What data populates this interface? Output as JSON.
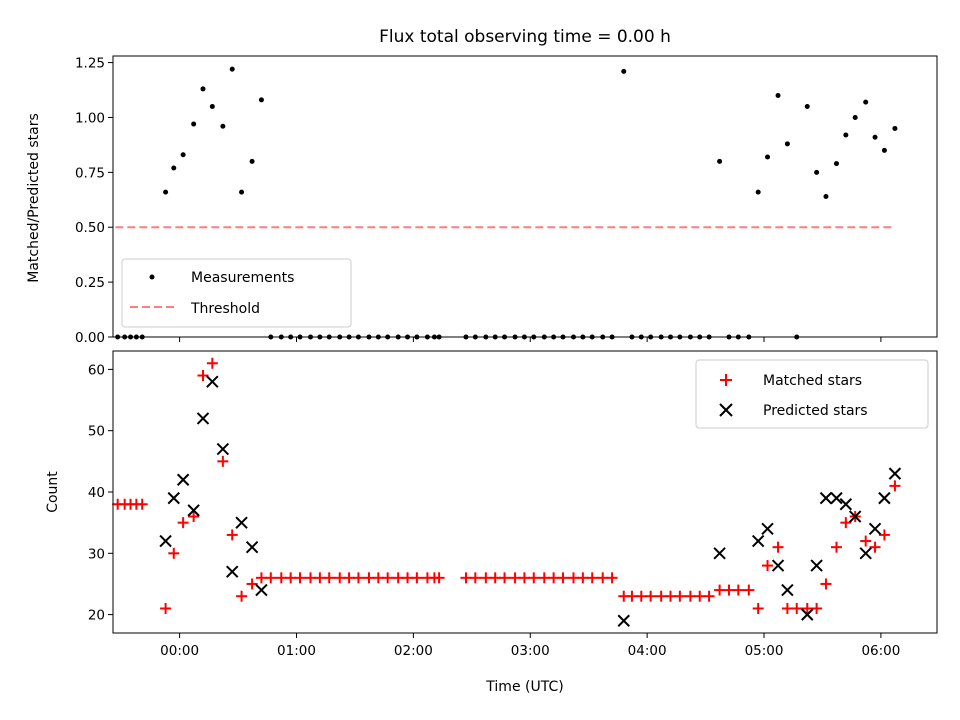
{
  "chart_data": [
    {
      "type": "scatter",
      "title": "Flux total observing time = 0.00 h",
      "xlabel": "",
      "ylabel": "Matched/Predicted stars",
      "xlim": [
        -0.57,
        6.48
      ],
      "ylim": [
        0.0,
        1.28
      ],
      "yticks": [
        0.0,
        0.25,
        0.5,
        0.75,
        1.0,
        1.25
      ],
      "ytick_labels": [
        "0.00",
        "0.25",
        "0.50",
        "0.75",
        "1.00",
        "1.25"
      ],
      "xticks": [
        0,
        1,
        2,
        3,
        4,
        5,
        6
      ],
      "legend_position": "lower-left",
      "series": [
        {
          "name": "Measurements",
          "style": "dot",
          "color": "#000000",
          "x": [
            -0.53,
            -0.47,
            -0.42,
            -0.37,
            -0.32,
            -0.12,
            -0.05,
            0.03,
            0.12,
            0.2,
            0.28,
            0.37,
            0.45,
            0.53,
            0.62,
            0.7,
            0.78,
            0.87,
            0.95,
            1.03,
            1.12,
            1.2,
            1.28,
            1.37,
            1.45,
            1.53,
            1.62,
            1.7,
            1.78,
            1.87,
            1.95,
            2.03,
            2.12,
            2.18,
            2.22,
            2.45,
            2.53,
            2.62,
            2.7,
            2.78,
            2.87,
            2.95,
            3.03,
            3.12,
            3.2,
            3.28,
            3.37,
            3.45,
            3.53,
            3.62,
            3.7,
            3.8,
            3.87,
            3.95,
            4.03,
            4.12,
            4.2,
            4.28,
            4.37,
            4.45,
            4.53,
            4.62,
            4.7,
            4.78,
            4.87,
            4.95,
            5.03,
            5.12,
            5.2,
            5.28,
            5.37,
            5.45,
            5.53,
            5.62,
            5.7,
            5.78,
            5.87,
            5.95,
            6.03,
            6.12
          ],
          "y": [
            0,
            0,
            0,
            0,
            0,
            0.66,
            0.77,
            0.83,
            0.97,
            1.13,
            1.05,
            0.96,
            1.22,
            0.66,
            0.8,
            1.08,
            0,
            0,
            0,
            0,
            0,
            0,
            0,
            0,
            0,
            0,
            0,
            0,
            0,
            0,
            0,
            0,
            0,
            0,
            0,
            0,
            0,
            0,
            0,
            0,
            0,
            0,
            0,
            0,
            0,
            0,
            0,
            0,
            0,
            0,
            0,
            1.21,
            0,
            0,
            0,
            0,
            0,
            0,
            0,
            0,
            0,
            0.8,
            0,
            0,
            0,
            0.66,
            0.82,
            1.1,
            0.88,
            0,
            1.05,
            0.75,
            0.64,
            0.79,
            0.92,
            1.0,
            1.07,
            0.91,
            0.85,
            0.95
          ]
        },
        {
          "name": "Threshold",
          "style": "dashed-line",
          "color": "#ff7f7f",
          "x": [
            -0.55,
            6.12
          ],
          "y": [
            0.5,
            0.5
          ]
        }
      ]
    },
    {
      "type": "scatter",
      "title": "",
      "xlabel": "Time (UTC)",
      "ylabel": "Count",
      "xlim": [
        -0.57,
        6.48
      ],
      "ylim": [
        17,
        63
      ],
      "yticks": [
        20,
        30,
        40,
        50,
        60
      ],
      "ytick_labels": [
        "20",
        "30",
        "40",
        "50",
        "60"
      ],
      "xticks": [
        0,
        1,
        2,
        3,
        4,
        5,
        6
      ],
      "xtick_labels": [
        "00:00",
        "01:00",
        "02:00",
        "03:00",
        "04:00",
        "05:00",
        "06:00"
      ],
      "legend_position": "upper-right",
      "series": [
        {
          "name": "Matched stars",
          "style": "plus",
          "color": "#ff0000",
          "x": [
            -0.53,
            -0.47,
            -0.42,
            -0.37,
            -0.32,
            -0.12,
            -0.05,
            0.03,
            0.12,
            0.2,
            0.28,
            0.37,
            0.45,
            0.53,
            0.62,
            0.7,
            0.78,
            0.87,
            0.95,
            1.03,
            1.12,
            1.2,
            1.28,
            1.37,
            1.45,
            1.53,
            1.62,
            1.7,
            1.78,
            1.87,
            1.95,
            2.03,
            2.12,
            2.18,
            2.22,
            2.45,
            2.53,
            2.62,
            2.7,
            2.78,
            2.87,
            2.95,
            3.03,
            3.12,
            3.2,
            3.28,
            3.37,
            3.45,
            3.53,
            3.62,
            3.7,
            3.8,
            3.87,
            3.95,
            4.03,
            4.12,
            4.2,
            4.28,
            4.37,
            4.45,
            4.53,
            4.62,
            4.7,
            4.78,
            4.87,
            4.95,
            5.03,
            5.12,
            5.2,
            5.28,
            5.37,
            5.45,
            5.53,
            5.62,
            5.7,
            5.78,
            5.87,
            5.95,
            6.03,
            6.12
          ],
          "y": [
            38,
            38,
            38,
            38,
            38,
            21,
            30,
            35,
            36,
            59,
            61,
            45,
            33,
            23,
            25,
            26,
            26,
            26,
            26,
            26,
            26,
            26,
            26,
            26,
            26,
            26,
            26,
            26,
            26,
            26,
            26,
            26,
            26,
            26,
            26,
            26,
            26,
            26,
            26,
            26,
            26,
            26,
            26,
            26,
            26,
            26,
            26,
            26,
            26,
            26,
            26,
            23,
            23,
            23,
            23,
            23,
            23,
            23,
            23,
            23,
            23,
            24,
            24,
            24,
            24,
            21,
            28,
            31,
            21,
            21,
            21,
            21,
            25,
            31,
            35,
            36,
            32,
            31,
            33,
            41
          ]
        },
        {
          "name": "Predicted stars",
          "style": "x",
          "color": "#000000",
          "x": [
            -0.12,
            -0.05,
            0.03,
            0.12,
            0.2,
            0.28,
            0.37,
            0.45,
            0.53,
            0.62,
            0.7,
            3.8,
            4.62,
            4.95,
            5.03,
            5.12,
            5.2,
            5.37,
            5.45,
            5.53,
            5.62,
            5.7,
            5.78,
            5.87,
            5.95,
            6.03,
            6.12
          ],
          "y": [
            32,
            39,
            42,
            37,
            52,
            58,
            47,
            27,
            35,
            31,
            24,
            19,
            30,
            32,
            34,
            28,
            24,
            20,
            28,
            39,
            39,
            38,
            36,
            30,
            34,
            39,
            43
          ]
        }
      ]
    }
  ]
}
